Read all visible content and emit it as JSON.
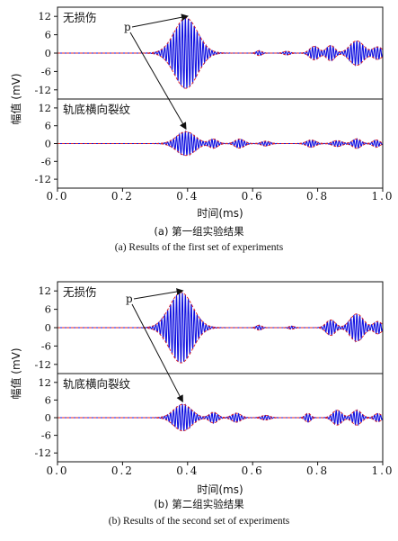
{
  "y_axis_label": "幅值 (mV)",
  "x_axis_label": "时间(ms)",
  "peak_marker": "p",
  "x_tick_labels": [
    "0.0",
    "0.2",
    "0.4",
    "0.6",
    "0.8",
    "1.0"
  ],
  "y_tick_labels": [
    "12",
    "6",
    "0",
    "-6",
    "-12"
  ],
  "groups": [
    {
      "caption_zh": "(a) 第一组实验结果",
      "caption_en": "(a) Results of the first set of experiments",
      "panels": [
        {
          "label": "无损伤"
        },
        {
          "label": "轨底横向裂纹"
        }
      ]
    },
    {
      "caption_zh": "(b) 第二组实验结果",
      "caption_en": "(b) Results of the second set of experiments",
      "panels": [
        {
          "label": "无损伤"
        },
        {
          "label": "轨底横向裂纹"
        }
      ]
    }
  ],
  "colors": {
    "signal": "#1010e0",
    "envelope": "#e02020",
    "axis": "#111111"
  },
  "chart_data": [
    {
      "type": "line",
      "title": "无损伤",
      "xlabel": "时间(ms)",
      "ylabel": "幅值 (mV)",
      "xlim": [
        0.0,
        1.0
      ],
      "ylim": [
        -15,
        15
      ],
      "series": [],
      "carrier_freq_per_ms": 110,
      "packets": [
        {
          "center": 0.395,
          "width": 0.05,
          "amp": 11.5
        },
        {
          "center": 0.62,
          "width": 0.012,
          "amp": 0.8
        },
        {
          "center": 0.705,
          "width": 0.014,
          "amp": 0.6
        },
        {
          "center": 0.79,
          "width": 0.02,
          "amp": 2.2
        },
        {
          "center": 0.84,
          "width": 0.018,
          "amp": 2.5
        },
        {
          "center": 0.92,
          "width": 0.03,
          "amp": 4.0
        },
        {
          "center": 0.985,
          "width": 0.02,
          "amp": 2.0
        }
      ]
    },
    {
      "type": "line",
      "title": "轨底横向裂纹",
      "xlabel": "时间(ms)",
      "ylabel": "幅值 (mV)",
      "xlim": [
        0.0,
        1.0
      ],
      "ylim": [
        -15,
        15
      ],
      "series": [],
      "carrier_freq_per_ms": 110,
      "packets": [
        {
          "center": 0.395,
          "width": 0.04,
          "amp": 4.0
        },
        {
          "center": 0.48,
          "width": 0.018,
          "amp": 1.5
        },
        {
          "center": 0.56,
          "width": 0.02,
          "amp": 1.5
        },
        {
          "center": 0.64,
          "width": 0.018,
          "amp": 0.8
        },
        {
          "center": 0.78,
          "width": 0.02,
          "amp": 1.2
        },
        {
          "center": 0.86,
          "width": 0.02,
          "amp": 1.0
        },
        {
          "center": 0.92,
          "width": 0.018,
          "amp": 1.6
        },
        {
          "center": 0.98,
          "width": 0.015,
          "amp": 1.2
        }
      ]
    },
    {
      "type": "line",
      "title": "无损伤",
      "xlabel": "时间(ms)",
      "ylabel": "幅值 (mV)",
      "xlim": [
        0.0,
        1.0
      ],
      "ylim": [
        -15,
        15
      ],
      "series": [],
      "carrier_freq_per_ms": 110,
      "packets": [
        {
          "center": 0.38,
          "width": 0.05,
          "amp": 11.5
        },
        {
          "center": 0.62,
          "width": 0.012,
          "amp": 0.8
        },
        {
          "center": 0.72,
          "width": 0.012,
          "amp": 0.5
        },
        {
          "center": 0.84,
          "width": 0.02,
          "amp": 2.5
        },
        {
          "center": 0.92,
          "width": 0.028,
          "amp": 4.5
        },
        {
          "center": 0.985,
          "width": 0.018,
          "amp": 2.0
        }
      ]
    },
    {
      "type": "line",
      "title": "轨底横向裂纹",
      "xlabel": "时间(ms)",
      "ylabel": "幅值 (mV)",
      "xlim": [
        0.0,
        1.0
      ],
      "ylim": [
        -15,
        15
      ],
      "series": [],
      "carrier_freq_per_ms": 110,
      "packets": [
        {
          "center": 0.385,
          "width": 0.038,
          "amp": 4.5
        },
        {
          "center": 0.48,
          "width": 0.018,
          "amp": 1.8
        },
        {
          "center": 0.55,
          "width": 0.02,
          "amp": 1.5
        },
        {
          "center": 0.64,
          "width": 0.018,
          "amp": 0.8
        },
        {
          "center": 0.77,
          "width": 0.012,
          "amp": 1.5
        },
        {
          "center": 0.86,
          "width": 0.02,
          "amp": 2.5
        },
        {
          "center": 0.92,
          "width": 0.02,
          "amp": 2.5
        },
        {
          "center": 0.985,
          "width": 0.015,
          "amp": 1.4
        }
      ]
    }
  ]
}
